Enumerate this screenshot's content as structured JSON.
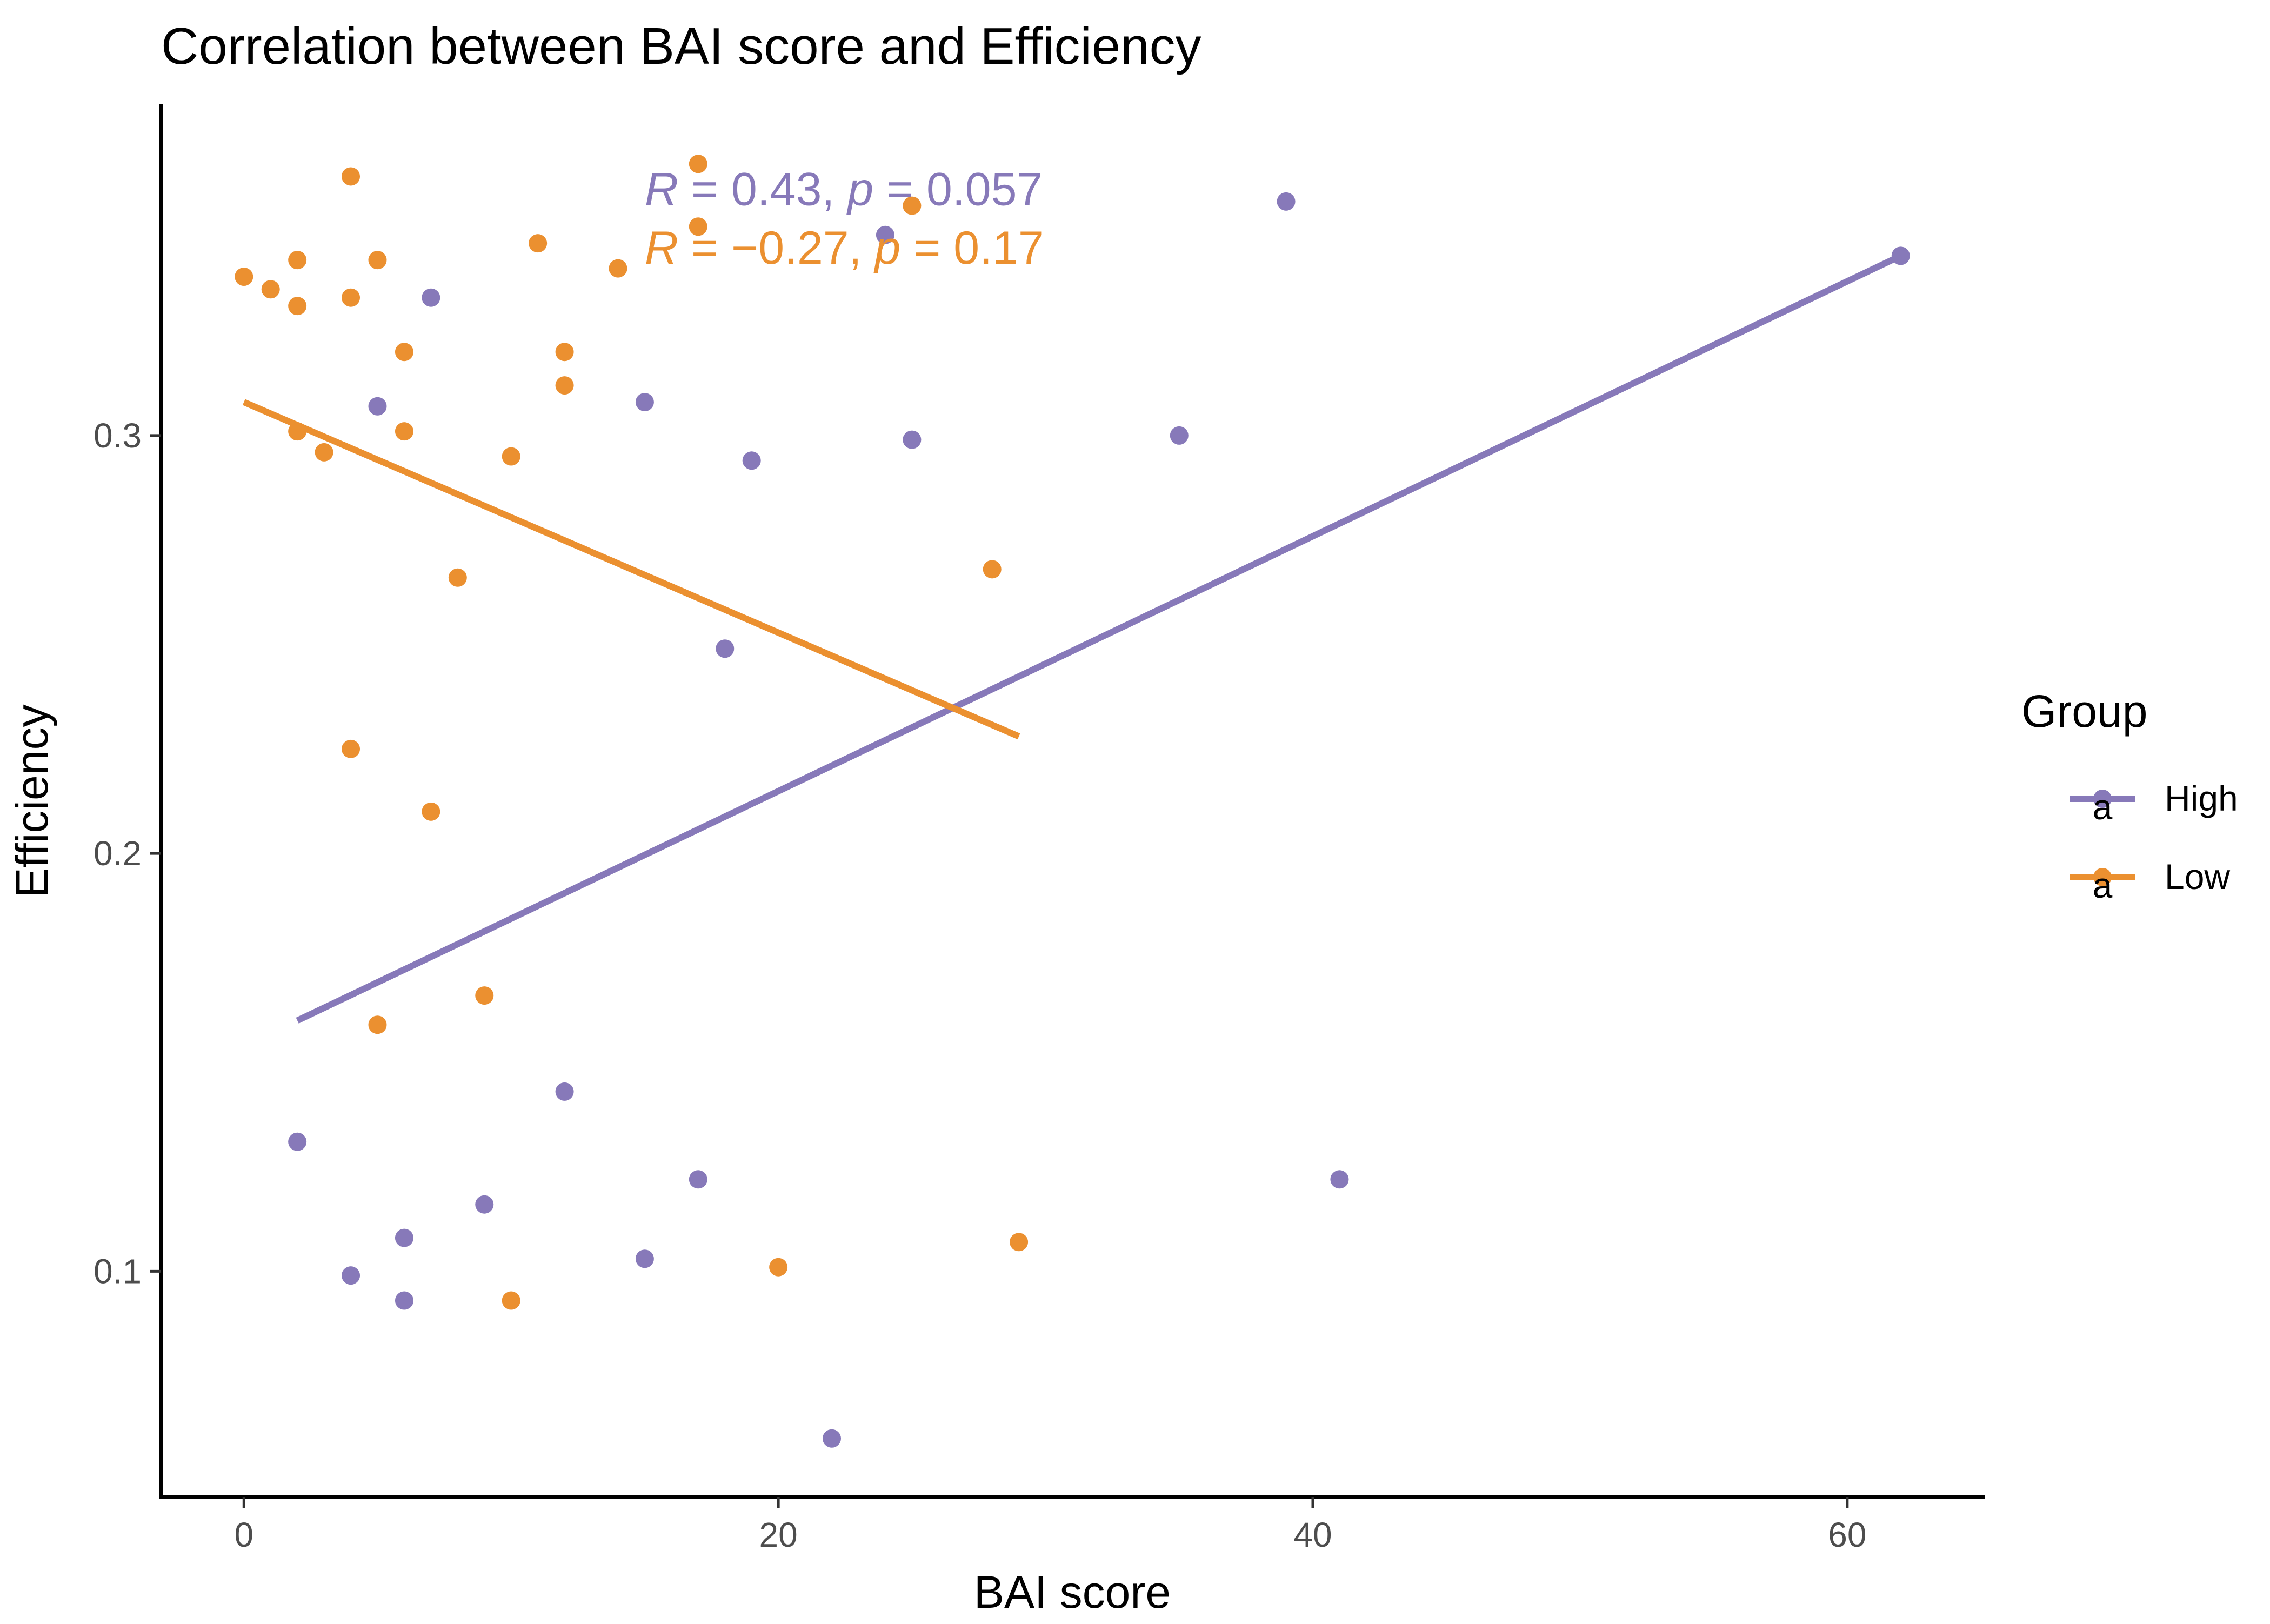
{
  "chart_data": {
    "type": "scatter",
    "title": "Correlation between BAI score and Efficiency",
    "xlabel": "BAI score",
    "ylabel": "Efficiency",
    "xlim": [
      -3.1,
      65.1
    ],
    "ylim": [
      0.046,
      0.379
    ],
    "x_ticks": [
      0,
      20,
      40,
      60
    ],
    "y_ticks": [
      0.1,
      0.2,
      0.3
    ],
    "x_tick_labels": [
      "0",
      "20",
      "40",
      "60"
    ],
    "y_tick_labels": [
      "0.1",
      "0.2",
      "0.3"
    ],
    "grid": false,
    "legend": {
      "title": "Group",
      "position": "right",
      "glyph": "a"
    },
    "annotations": [
      {
        "series": "High",
        "R_label": "R",
        "R_text": " = 0.43, ",
        "p_label": "p",
        "p_text": " = 0.057",
        "x": 15,
        "y": 0.359
      },
      {
        "series": "Low",
        "R_label": "R",
        "R_text": " = −0.27, ",
        "p_label": "p",
        "p_text": " = 0.17",
        "x": 15,
        "y": 0.345
      }
    ],
    "series": [
      {
        "name": "High",
        "color": "#8779B9",
        "points": [
          [
            2,
            0.131
          ],
          [
            4,
            0.099
          ],
          [
            5,
            0.307
          ],
          [
            6,
            0.108
          ],
          [
            6,
            0.093
          ],
          [
            7,
            0.333
          ],
          [
            9,
            0.116
          ],
          [
            12,
            0.143
          ],
          [
            15,
            0.103
          ],
          [
            15,
            0.308
          ],
          [
            17,
            0.122
          ],
          [
            18,
            0.249
          ],
          [
            19,
            0.294
          ],
          [
            22,
            0.06
          ],
          [
            24,
            0.348
          ],
          [
            25,
            0.299
          ],
          [
            35,
            0.3
          ],
          [
            39,
            0.356
          ],
          [
            41,
            0.122
          ],
          [
            62,
            0.343
          ]
        ],
        "fit": {
          "x": [
            2,
            62
          ],
          "y": [
            0.16,
            0.343
          ]
        }
      },
      {
        "name": "Low",
        "color": "#EB9030",
        "points": [
          [
            0,
            0.338
          ],
          [
            1,
            0.335
          ],
          [
            2,
            0.342
          ],
          [
            2,
            0.331
          ],
          [
            2,
            0.301
          ],
          [
            3,
            0.296
          ],
          [
            4,
            0.362
          ],
          [
            4,
            0.333
          ],
          [
            4,
            0.225
          ],
          [
            5,
            0.342
          ],
          [
            5,
            0.159
          ],
          [
            6,
            0.32
          ],
          [
            6,
            0.301
          ],
          [
            7,
            0.21
          ],
          [
            8,
            0.266
          ],
          [
            9,
            0.166
          ],
          [
            10,
            0.295
          ],
          [
            10,
            0.093
          ],
          [
            11,
            0.346
          ],
          [
            12,
            0.32
          ],
          [
            12,
            0.312
          ],
          [
            14,
            0.34
          ],
          [
            17,
            0.365
          ],
          [
            17,
            0.35
          ],
          [
            20,
            0.101
          ],
          [
            25,
            0.355
          ],
          [
            28,
            0.268
          ],
          [
            29,
            0.107
          ]
        ],
        "fit": {
          "x": [
            0,
            29
          ],
          "y": [
            0.308,
            0.228
          ]
        }
      }
    ]
  }
}
